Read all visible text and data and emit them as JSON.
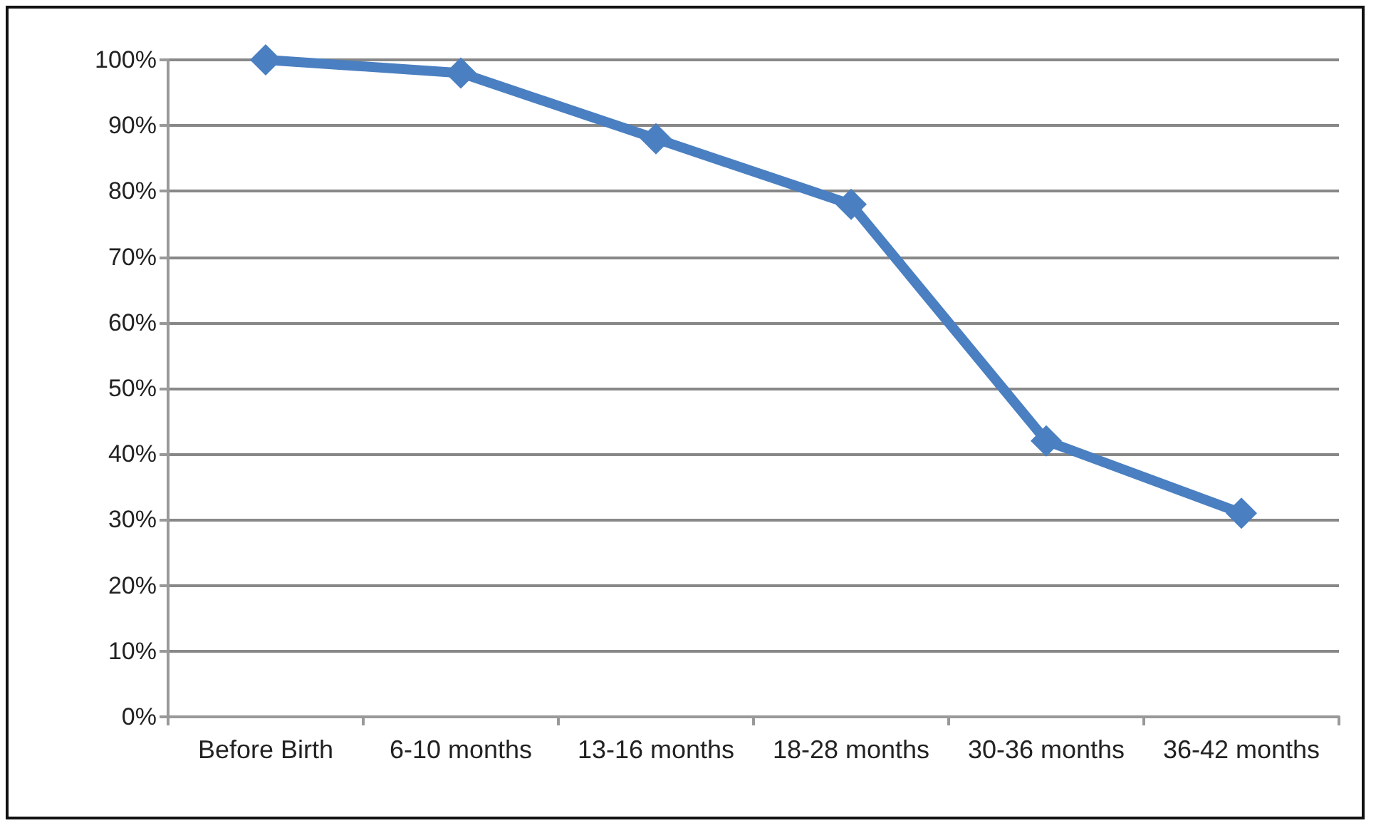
{
  "chart_data": {
    "type": "line",
    "categories": [
      "Before Birth",
      "6-10 months",
      "13-16 months",
      "18-28 months",
      "30-36 months",
      "36-42 months"
    ],
    "series": [
      {
        "color": "#4a7fc1",
        "values": [
          100,
          98,
          88,
          78,
          42,
          31
        ]
      }
    ],
    "ylim": [
      0,
      100
    ],
    "yticks": [
      {
        "value": 0,
        "label": "0%"
      },
      {
        "value": 10,
        "label": "10%"
      },
      {
        "value": 20,
        "label": "20%"
      },
      {
        "value": 30,
        "label": "30%"
      },
      {
        "value": 40,
        "label": "40%"
      },
      {
        "value": 50,
        "label": "50%"
      },
      {
        "value": 60,
        "label": "60%"
      },
      {
        "value": 70,
        "label": "70%"
      },
      {
        "value": 80,
        "label": "80%"
      },
      {
        "value": 90,
        "label": "90%"
      },
      {
        "value": 100,
        "label": "100%"
      }
    ],
    "grid": "y",
    "marker": "diamond",
    "line_style": "solid"
  }
}
